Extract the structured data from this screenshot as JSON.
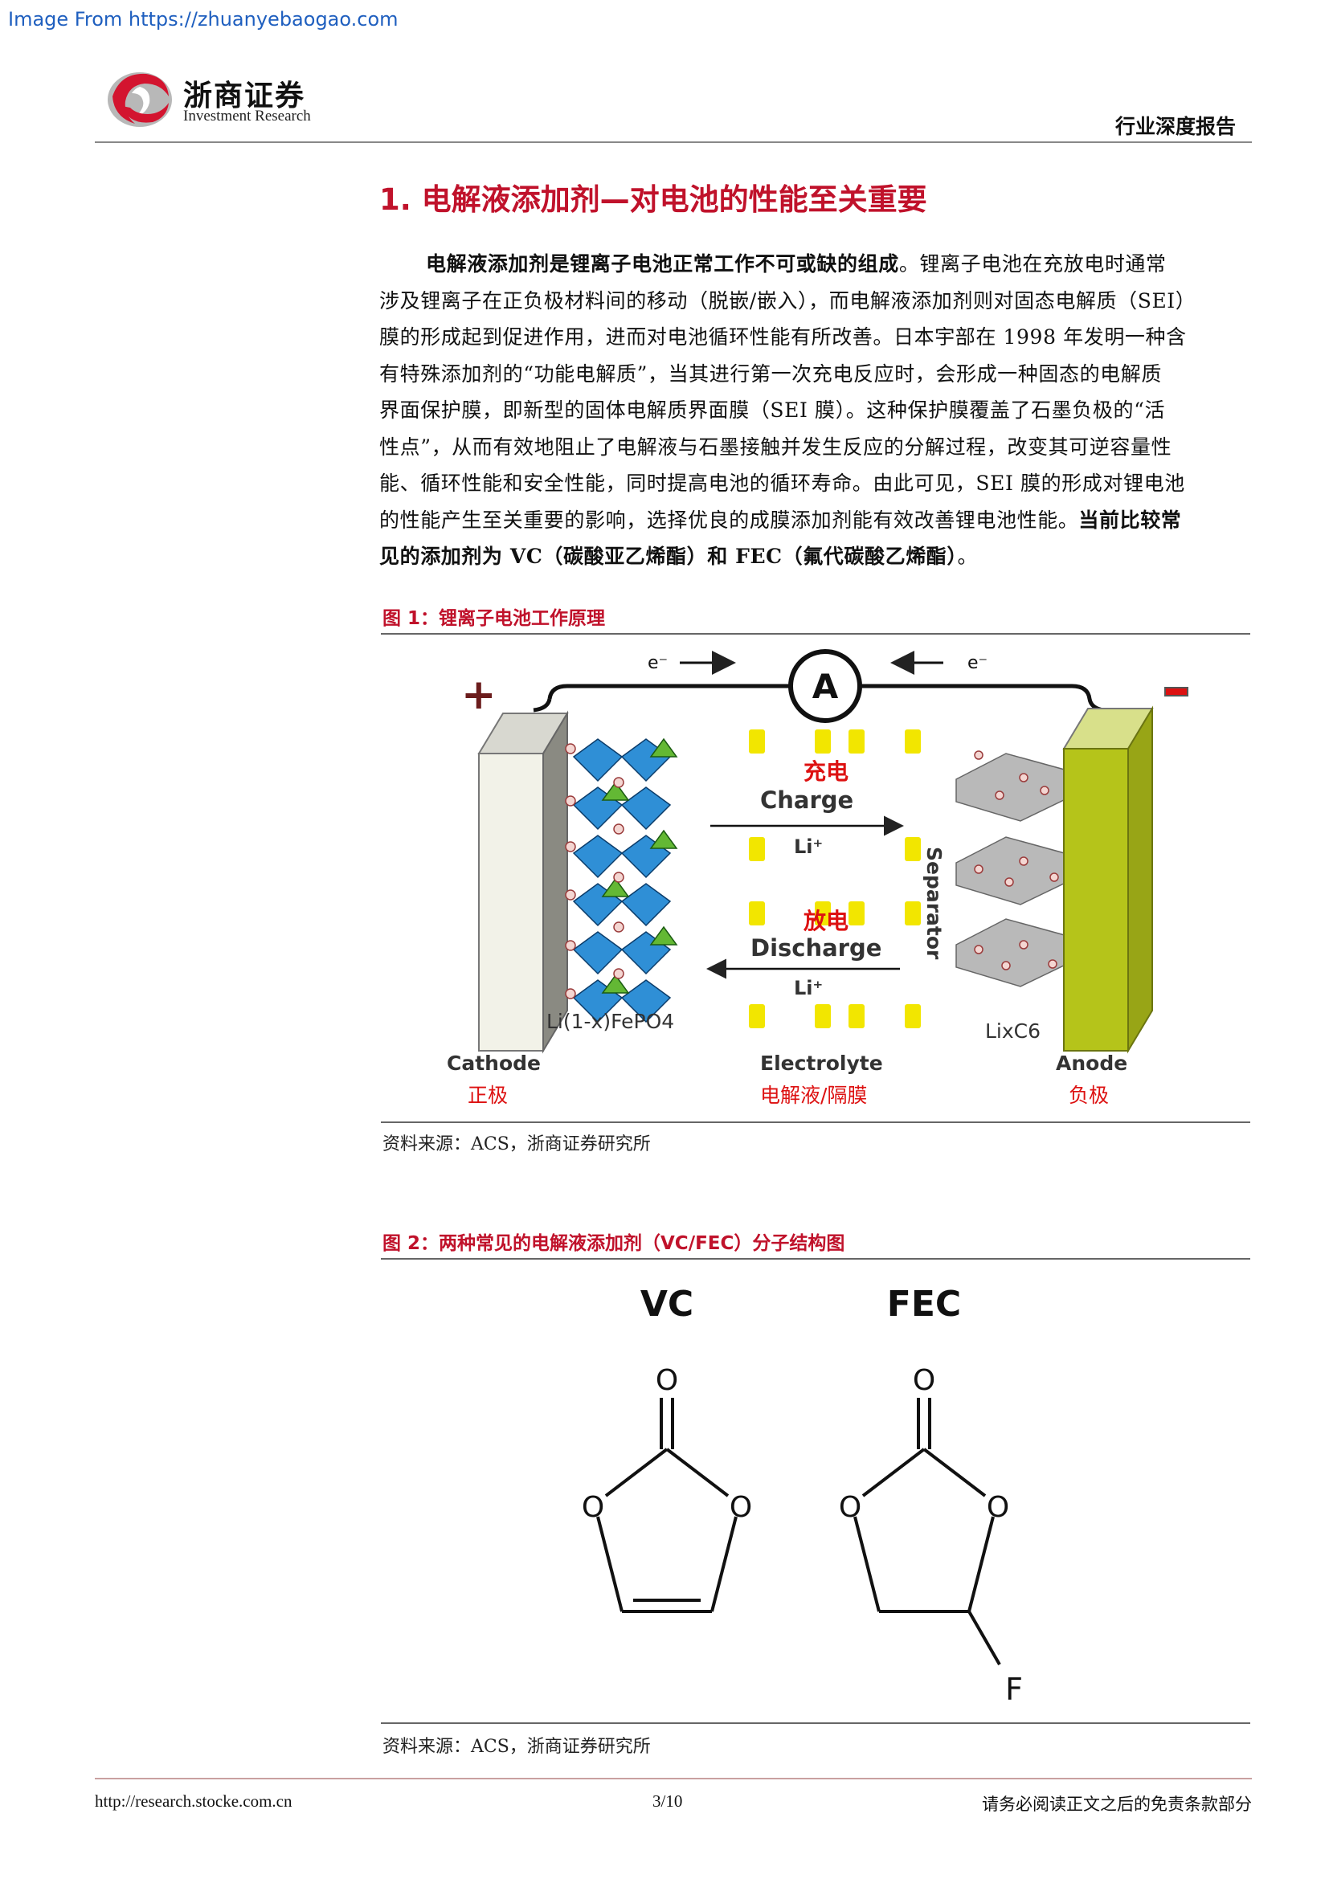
{
  "watermark": "Image From https://zhuanyebaogao.com",
  "header": {
    "logo_cn": "浙商证券",
    "logo_en": "Investment Research",
    "report_type": "行业深度报告"
  },
  "section": {
    "title": "1. 电解液添加剂—对电池的性能至关重要"
  },
  "paragraph": {
    "line1_bold": "电解液添加剂是锂离子电池正常工作不可或缺的组成",
    "line1_rest": "。锂离子电池在充放电时通常",
    "line2": "涉及锂离子在正负极材料间的移动（脱嵌/嵌入），而电解液添加剂则对固态电解质（SEI）",
    "line3": "膜的形成起到促进作用，进而对电池循环性能有所改善。日本宇部在 1998 年发明一种含",
    "line4": "有特殊添加剂的“功能电解质”，当其进行第一次充电反应时，会形成一种固态的电解质",
    "line5": "界面保护膜，即新型的固体电解质界面膜（SEI 膜）。这种保护膜覆盖了石墨负极的“活",
    "line6": "性点”，从而有效地阻止了电解液与石墨接触并发生反应的分解过程，改变其可逆容量性",
    "line7": "能、循环性能和安全性能，同时提高电池的循环寿命。由此可见，SEI 膜的形成对锂电池",
    "line8_rest": "的性能产生至关重要的影响，选择优良的成膜添加剂能有效改善锂电池性能。",
    "line8_bold": "当前比较常",
    "line9_bold": "见的添加剂为 VC（碳酸亚乙烯酯）和 FEC（氟代碳酸乙烯酯）",
    "line9_rest": "。"
  },
  "figure1": {
    "title": "图 1：锂离子电池工作原理",
    "source": "资料来源：ACS，浙商证券研究所",
    "labels": {
      "electron_left": "e⁻",
      "electron_right": "e⁻",
      "ammeter": "A",
      "plus": "+",
      "charge_cn": "充电",
      "charge_en": "Charge",
      "li_charge": "Li⁺",
      "discharge_cn": "放电",
      "discharge_en": "Discharge",
      "li_discharge": "Li⁺",
      "separator": "Separator",
      "cathode_formula": "Li(1-x)FePO4",
      "anode_formula": "LixC6",
      "cathode_en": "Cathode",
      "cathode_cn": "正极",
      "electrolyte_en": "Electrolyte",
      "electrolyte_cn": "电解液/隔膜",
      "anode_en": "Anode",
      "anode_cn": "负极"
    }
  },
  "figure2": {
    "title": "图 2：两种常见的电解液添加剂（VC/FEC）分子结构图",
    "source": "资料来源：ACS，浙商证券研究所",
    "labels": {
      "vc": "VC",
      "fec": "FEC",
      "oxygen": "O",
      "fluorine": "F"
    }
  },
  "footer": {
    "url": "http://research.stocke.com.cn",
    "page": "3/10",
    "disclaimer": "请务必阅读正文之后的免责条款部分"
  },
  "colors": {
    "accent_red": "#c0122b",
    "cathode_blue": "#2f8fd6",
    "anode_green": "#b5c41a",
    "separator_yellow": "#f2e600"
  }
}
